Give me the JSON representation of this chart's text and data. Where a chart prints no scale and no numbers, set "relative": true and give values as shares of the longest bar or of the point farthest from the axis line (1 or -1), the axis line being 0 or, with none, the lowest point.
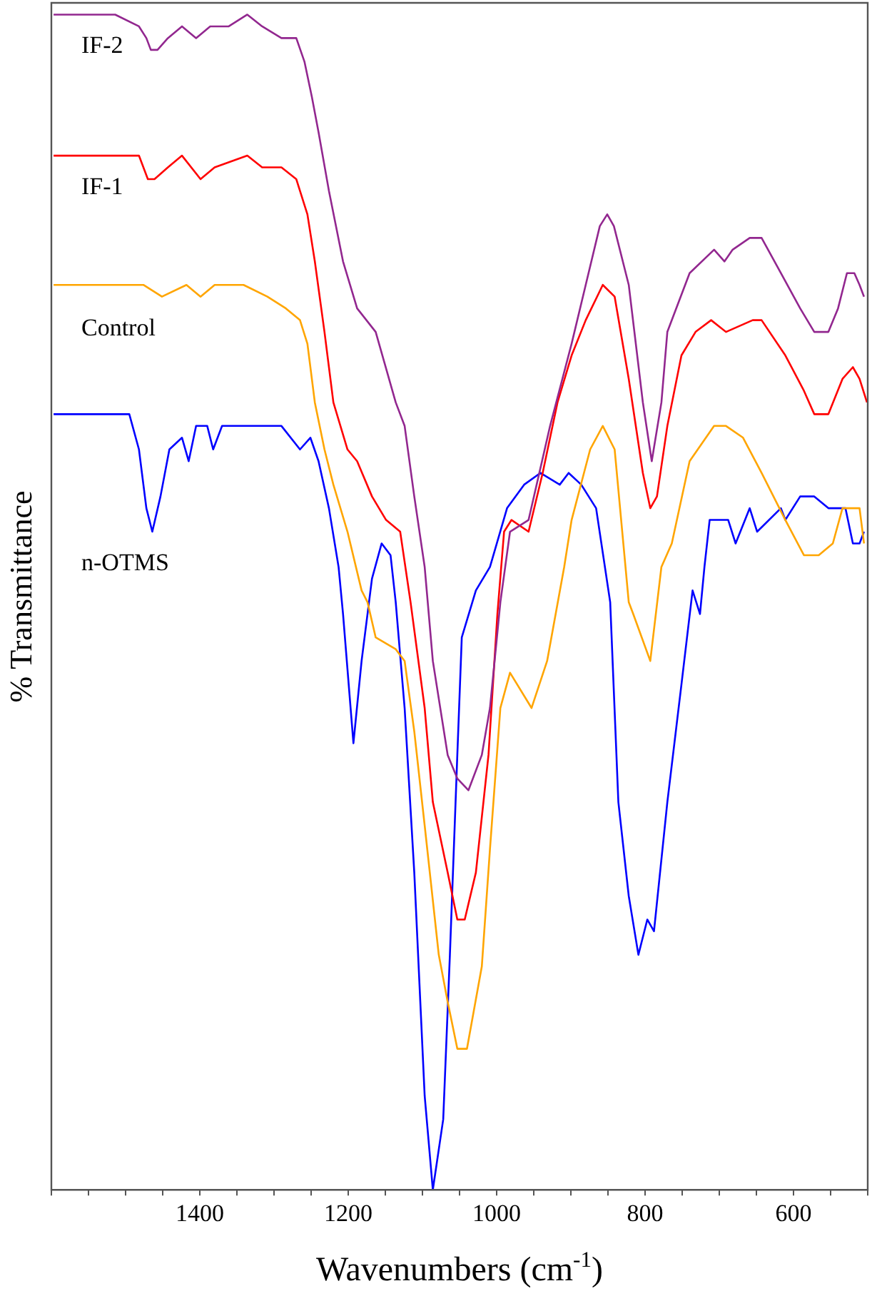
{
  "chart_data": {
    "type": "line",
    "xlabel": "Wavenumbers (cm$^{-1}$)",
    "ylabel": "% Transmittance",
    "relative": true,
    "legend": false,
    "grid": false,
    "marker": "none",
    "line_style": "solid",
    "xlim": [
      1600,
      500
    ],
    "xticks": [
      {
        "value": 1600,
        "label": null
      },
      {
        "value": 1550,
        "label": null
      },
      {
        "value": 1500,
        "label": null
      },
      {
        "value": 1450,
        "label": null
      },
      1400,
      {
        "value": 1350,
        "label": null
      },
      {
        "value": 1300,
        "label": null
      },
      {
        "value": 1250,
        "label": null
      },
      1200,
      {
        "value": 1150,
        "label": null
      },
      {
        "value": 1100,
        "label": null
      },
      {
        "value": 1050,
        "label": null
      },
      1000,
      {
        "value": 950,
        "label": null
      },
      {
        "value": 900,
        "label": null
      },
      {
        "value": 850,
        "label": null
      },
      800,
      {
        "value": 750,
        "label": null
      },
      {
        "value": 700,
        "label": null
      },
      {
        "value": 650,
        "label": null
      },
      600,
      {
        "value": 550,
        "label": null
      },
      {
        "value": 500,
        "label": null
      }
    ],
    "series": [
      {
        "name": "IF-2",
        "color": "#92278f",
        "x": [
          1597,
          1572,
          1547,
          1514,
          1482,
          1472,
          1466,
          1457,
          1443,
          1424,
          1405,
          1386,
          1361,
          1336,
          1316,
          1290,
          1270,
          1259,
          1249,
          1240,
          1226,
          1207,
          1188,
          1163,
          1136,
          1124,
          1111,
          1097,
          1086,
          1066,
          1053,
          1038,
          1020,
          1009,
          995,
          982,
          957,
          928,
          899,
          880,
          861,
          851,
          842,
          822,
          803,
          791,
          778,
          770,
          740,
          707,
          693,
          682,
          659,
          643,
          617,
          591,
          572,
          553,
          540,
          528,
          518,
          511,
          505
        ],
        "values": [
          1.0,
          1.0,
          1.0,
          1.0,
          0.99,
          0.98,
          0.97,
          0.97,
          0.98,
          0.99,
          0.98,
          0.99,
          0.99,
          1.0,
          0.99,
          0.98,
          0.98,
          0.96,
          0.93,
          0.9,
          0.85,
          0.79,
          0.75,
          0.73,
          0.67,
          0.65,
          0.59,
          0.53,
          0.45,
          0.37,
          0.35,
          0.34,
          0.37,
          0.41,
          0.5,
          0.56,
          0.57,
          0.65,
          0.72,
          0.77,
          0.82,
          0.83,
          0.82,
          0.77,
          0.67,
          0.62,
          0.67,
          0.73,
          0.78,
          0.8,
          0.79,
          0.8,
          0.81,
          0.81,
          0.78,
          0.75,
          0.73,
          0.73,
          0.75,
          0.78,
          0.78,
          0.77,
          0.76
        ]
      },
      {
        "name": "IF-1",
        "color": "#ff0000",
        "x": [
          1597,
          1572,
          1547,
          1514,
          1482,
          1470,
          1461,
          1443,
          1424,
          1399,
          1380,
          1336,
          1316,
          1290,
          1270,
          1255,
          1245,
          1232,
          1220,
          1201,
          1188,
          1168,
          1149,
          1130,
          1116,
          1097,
          1086,
          1066,
          1053,
          1043,
          1028,
          1011,
          999,
          990,
          980,
          957,
          938,
          918,
          899,
          880,
          857,
          841,
          822,
          803,
          793,
          784,
          770,
          751,
          732,
          711,
          691,
          655,
          643,
          611,
          586,
          572,
          553,
          534,
          520,
          511,
          501
        ],
        "values": [
          0.88,
          0.88,
          0.88,
          0.88,
          0.88,
          0.86,
          0.86,
          0.87,
          0.88,
          0.86,
          0.87,
          0.88,
          0.87,
          0.87,
          0.86,
          0.83,
          0.79,
          0.73,
          0.67,
          0.63,
          0.62,
          0.59,
          0.57,
          0.56,
          0.5,
          0.41,
          0.33,
          0.27,
          0.23,
          0.23,
          0.27,
          0.37,
          0.49,
          0.56,
          0.57,
          0.56,
          0.61,
          0.67,
          0.71,
          0.74,
          0.77,
          0.76,
          0.69,
          0.61,
          0.58,
          0.59,
          0.65,
          0.71,
          0.73,
          0.74,
          0.73,
          0.74,
          0.74,
          0.71,
          0.68,
          0.66,
          0.66,
          0.69,
          0.7,
          0.69,
          0.67
        ]
      },
      {
        "name": "Control",
        "color": "#ffa500",
        "x": [
          1597,
          1547,
          1495,
          1476,
          1451,
          1418,
          1399,
          1380,
          1341,
          1309,
          1284,
          1265,
          1255,
          1245,
          1232,
          1220,
          1201,
          1182,
          1174,
          1163,
          1136,
          1124,
          1111,
          1097,
          1078,
          1066,
          1053,
          1040,
          1020,
          1009,
          995,
          982,
          953,
          932,
          909,
          899,
          874,
          857,
          841,
          822,
          816,
          793,
          778,
          764,
          740,
          707,
          691,
          668,
          643,
          611,
          586,
          566,
          547,
          534,
          520,
          511,
          505
        ],
        "values": [
          0.77,
          0.77,
          0.77,
          0.77,
          0.76,
          0.77,
          0.76,
          0.77,
          0.77,
          0.76,
          0.75,
          0.74,
          0.72,
          0.67,
          0.63,
          0.6,
          0.56,
          0.51,
          0.5,
          0.47,
          0.46,
          0.45,
          0.39,
          0.31,
          0.2,
          0.16,
          0.12,
          0.12,
          0.19,
          0.29,
          0.41,
          0.44,
          0.41,
          0.45,
          0.53,
          0.57,
          0.63,
          0.65,
          0.63,
          0.5,
          0.49,
          0.45,
          0.53,
          0.55,
          0.62,
          0.65,
          0.65,
          0.64,
          0.61,
          0.57,
          0.54,
          0.54,
          0.55,
          0.58,
          0.58,
          0.58,
          0.55
        ]
      },
      {
        "name": "n-OTMS",
        "color": "#0000ff",
        "x": [
          1597,
          1547,
          1495,
          1482,
          1472,
          1464,
          1453,
          1441,
          1424,
          1415,
          1405,
          1390,
          1382,
          1370,
          1336,
          1309,
          1290,
          1265,
          1251,
          1240,
          1226,
          1213,
          1207,
          1193,
          1182,
          1168,
          1155,
          1143,
          1136,
          1124,
          1111,
          1097,
          1086,
          1072,
          1063,
          1053,
          1047,
          1028,
          1009,
          986,
          963,
          941,
          915,
          903,
          886,
          866,
          847,
          836,
          822,
          809,
          797,
          788,
          770,
          751,
          736,
          726,
          720,
          713,
          688,
          678,
          659,
          649,
          617,
          611,
          591,
          572,
          553,
          530,
          520,
          511,
          505
        ],
        "values": [
          0.66,
          0.66,
          0.66,
          0.63,
          0.58,
          0.56,
          0.59,
          0.63,
          0.64,
          0.62,
          0.65,
          0.65,
          0.63,
          0.65,
          0.65,
          0.65,
          0.65,
          0.63,
          0.64,
          0.62,
          0.58,
          0.53,
          0.49,
          0.38,
          0.45,
          0.52,
          0.55,
          0.54,
          0.5,
          0.41,
          0.27,
          0.08,
          0.0,
          0.06,
          0.2,
          0.37,
          0.47,
          0.51,
          0.53,
          0.58,
          0.6,
          0.61,
          0.6,
          0.61,
          0.6,
          0.58,
          0.5,
          0.33,
          0.25,
          0.2,
          0.23,
          0.22,
          0.33,
          0.43,
          0.51,
          0.49,
          0.53,
          0.57,
          0.57,
          0.55,
          0.58,
          0.56,
          0.58,
          0.57,
          0.59,
          0.59,
          0.58,
          0.58,
          0.55,
          0.55,
          0.56
        ]
      }
    ]
  }
}
